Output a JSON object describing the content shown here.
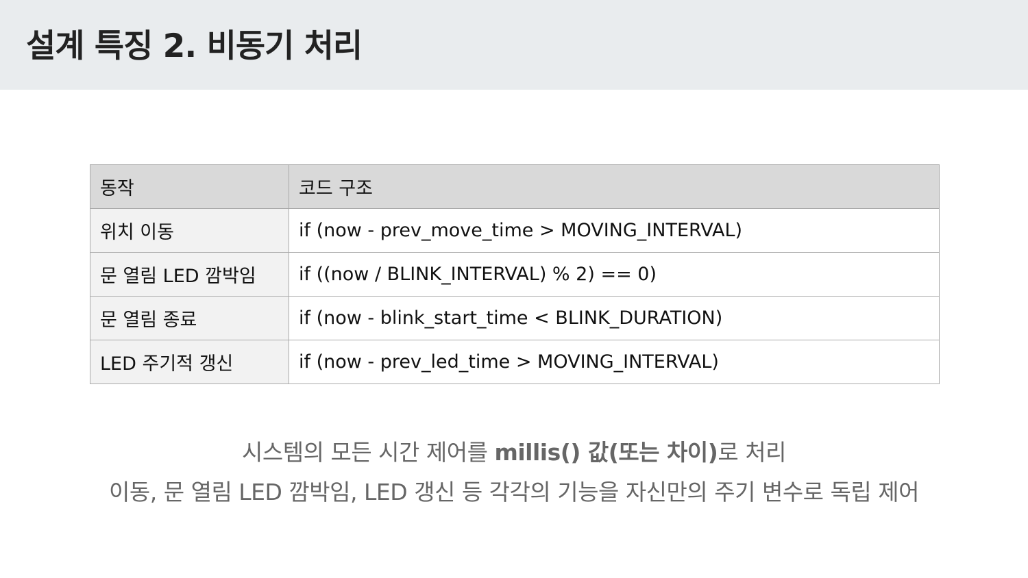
{
  "slide": {
    "title": "설계 특징 2. 비동기 처리"
  },
  "table": {
    "headers": [
      "동작",
      "코드 구조"
    ],
    "rows": [
      {
        "action": "위치 이동",
        "code": "if (now - prev_move_time > MOVING_INTERVAL)"
      },
      {
        "action": "문 열림 LED 깜박임",
        "code": "if ((now / BLINK_INTERVAL) % 2) == 0)"
      },
      {
        "action": "문 열림 종료",
        "code": "if (now - blink_start_time < BLINK_DURATION)"
      },
      {
        "action": "LED 주기적 갱신",
        "code": "if (now - prev_led_time > MOVING_INTERVAL)"
      }
    ]
  },
  "summary": {
    "line1_prefix": "시스템의 모든 시간 제어를 ",
    "line1_bold": "millis() 값(또는 차이)",
    "line1_suffix": "로 처리",
    "line2": "이동, 문 열림 LED 깜박임, LED 갱신 등 각각의 기능을 자신만의 주기 변수로 독립 제어"
  },
  "colors": {
    "header_bg": "#e9ecee",
    "table_header_bg": "#d9d9d9",
    "table_first_col_bg": "#f2f2f2",
    "summary_text": "#666666"
  }
}
